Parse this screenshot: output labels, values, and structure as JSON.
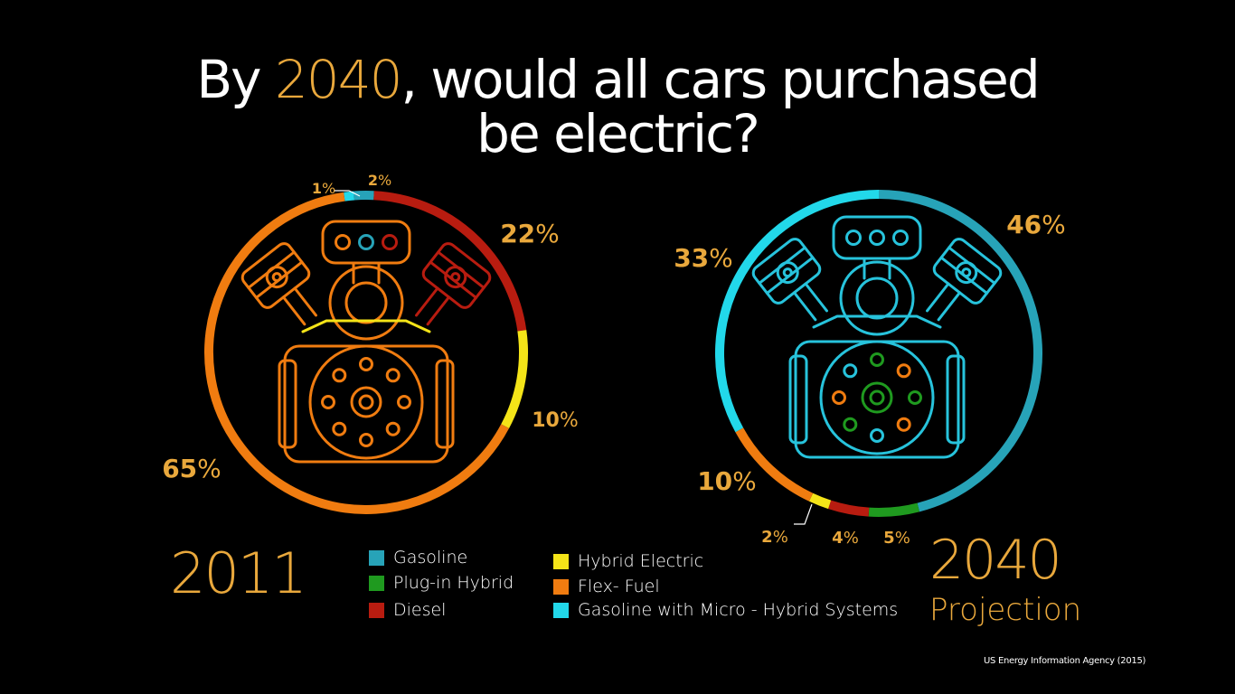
{
  "title": {
    "part1": "By ",
    "year": "2040",
    "part2": ",  would all cars purchased",
    "line2": "be electric?"
  },
  "colors": {
    "gasoline": "#27a3b8",
    "plug_in_hybrid": "#1f9a1f",
    "diesel": "#b81c10",
    "hybrid_electric": "#f4e418",
    "flex_fuel": "#f07c10",
    "micro_hybrid": "#22d8ea",
    "accent": "#e9a83c"
  },
  "chart_data": [
    {
      "type": "pie",
      "label": "2011",
      "slices": [
        {
          "name": "Gasoline with Micro - Hybrid Systems",
          "value": 1,
          "label": "1%"
        },
        {
          "name": "Plug-in Hybrid",
          "value": 0,
          "label": ""
        },
        {
          "name": "Gasoline",
          "value": 2,
          "label": "2%"
        },
        {
          "name": "Diesel",
          "value": 22,
          "label": "22%"
        },
        {
          "name": "Hybrid Electric",
          "value": 10,
          "label": "10%"
        },
        {
          "name": "Flex- Fuel",
          "value": 65,
          "label": "65%"
        }
      ]
    },
    {
      "type": "pie",
      "label": "2040 Projection",
      "slices": [
        {
          "name": "Gasoline",
          "value": 46,
          "label": "46%"
        },
        {
          "name": "Plug-in Hybrid",
          "value": 5,
          "label": "5%"
        },
        {
          "name": "Diesel",
          "value": 4,
          "label": "4%"
        },
        {
          "name": "Hybrid Electric",
          "value": 2,
          "label": "2%"
        },
        {
          "name": "Flex- Fuel",
          "value": 10,
          "label": "10%"
        },
        {
          "name": "Gasoline with Micro - Hybrid Systems",
          "value": 33,
          "label": "33%"
        }
      ]
    }
  ],
  "year_left": "2011",
  "year_right": "2040",
  "year_right_sub": "Projection",
  "legend": [
    {
      "label": "Gasoline",
      "color": "#27a3b8"
    },
    {
      "label": "Plug-in Hybrid",
      "color": "#1f9a1f"
    },
    {
      "label": "Diesel",
      "color": "#b81c10"
    },
    {
      "label": "Hybrid Electric",
      "color": "#f4e418"
    },
    {
      "label": "Flex- Fuel",
      "color": "#f07c10"
    },
    {
      "label": "Gasoline with Micro - Hybrid Systems",
      "color": "#22d8ea"
    }
  ],
  "source": "US Energy Information Agency (2015)"
}
